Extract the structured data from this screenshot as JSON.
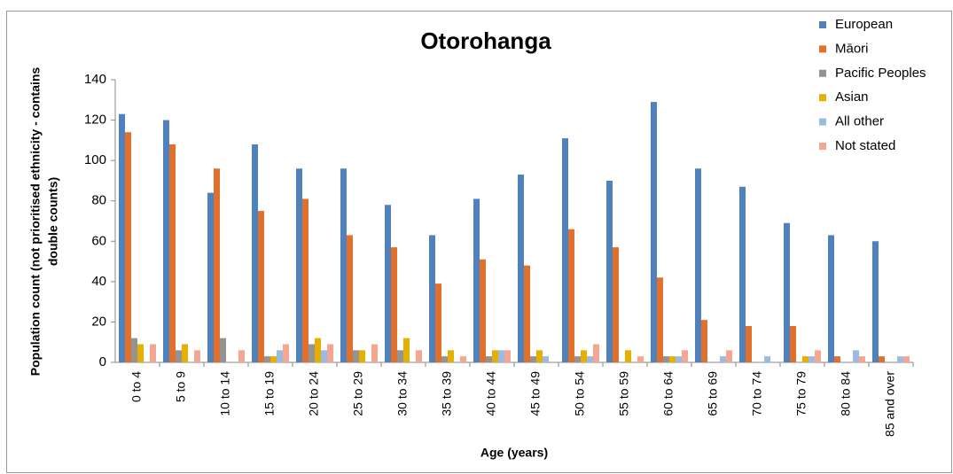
{
  "chart_data": {
    "type": "bar",
    "title": "Otorohanga",
    "xlabel": "Age (years)",
    "ylabel": [
      "Population count (not prioritised ethnicity - contains",
      "double counts)"
    ],
    "categories": [
      "0 to 4",
      "5 to 9",
      "10 to 14",
      "15 to 19",
      "20 to 24",
      "25 to 29",
      "30 to 34",
      "35 to 39",
      "40 to 44",
      "45 to 49",
      "50 to 54",
      "55 to 59",
      "60 to 64",
      "65 to 69",
      "70 to 74",
      "75 to 79",
      "80 to 84",
      "85 and over"
    ],
    "series": [
      {
        "name": "European",
        "color": "#4f81bd",
        "values": [
          123,
          120,
          84,
          108,
          96,
          96,
          78,
          63,
          81,
          93,
          111,
          90,
          129,
          96,
          87,
          69,
          63,
          60
        ]
      },
      {
        "name": "Māori",
        "color": "#e0702c",
        "values": [
          114,
          108,
          96,
          75,
          81,
          63,
          57,
          39,
          51,
          48,
          66,
          57,
          42,
          21,
          18,
          18,
          3,
          3
        ]
      },
      {
        "name": "Pacific Peoples",
        "color": "#939393",
        "values": [
          12,
          6,
          12,
          3,
          9,
          6,
          6,
          3,
          3,
          3,
          3,
          0,
          3,
          0,
          0,
          0,
          0,
          0
        ]
      },
      {
        "name": "Asian",
        "color": "#e6b000",
        "values": [
          9,
          9,
          0,
          3,
          12,
          6,
          12,
          6,
          6,
          6,
          6,
          6,
          3,
          0,
          0,
          3,
          0,
          0
        ]
      },
      {
        "name": "All other",
        "color": "#9dbbe0",
        "values": [
          0,
          0,
          0,
          6,
          6,
          0,
          0,
          0,
          6,
          3,
          3,
          0,
          3,
          3,
          3,
          3,
          6,
          3
        ]
      },
      {
        "name": "Not stated",
        "color": "#f4a690",
        "values": [
          9,
          6,
          6,
          9,
          9,
          9,
          6,
          3,
          6,
          0,
          9,
          3,
          6,
          6,
          0,
          6,
          3,
          3
        ]
      }
    ],
    "ylim": [
      0,
      140
    ],
    "yticks": [
      0,
      20,
      40,
      60,
      80,
      100,
      120,
      140
    ],
    "grid": false,
    "legend": "right"
  }
}
